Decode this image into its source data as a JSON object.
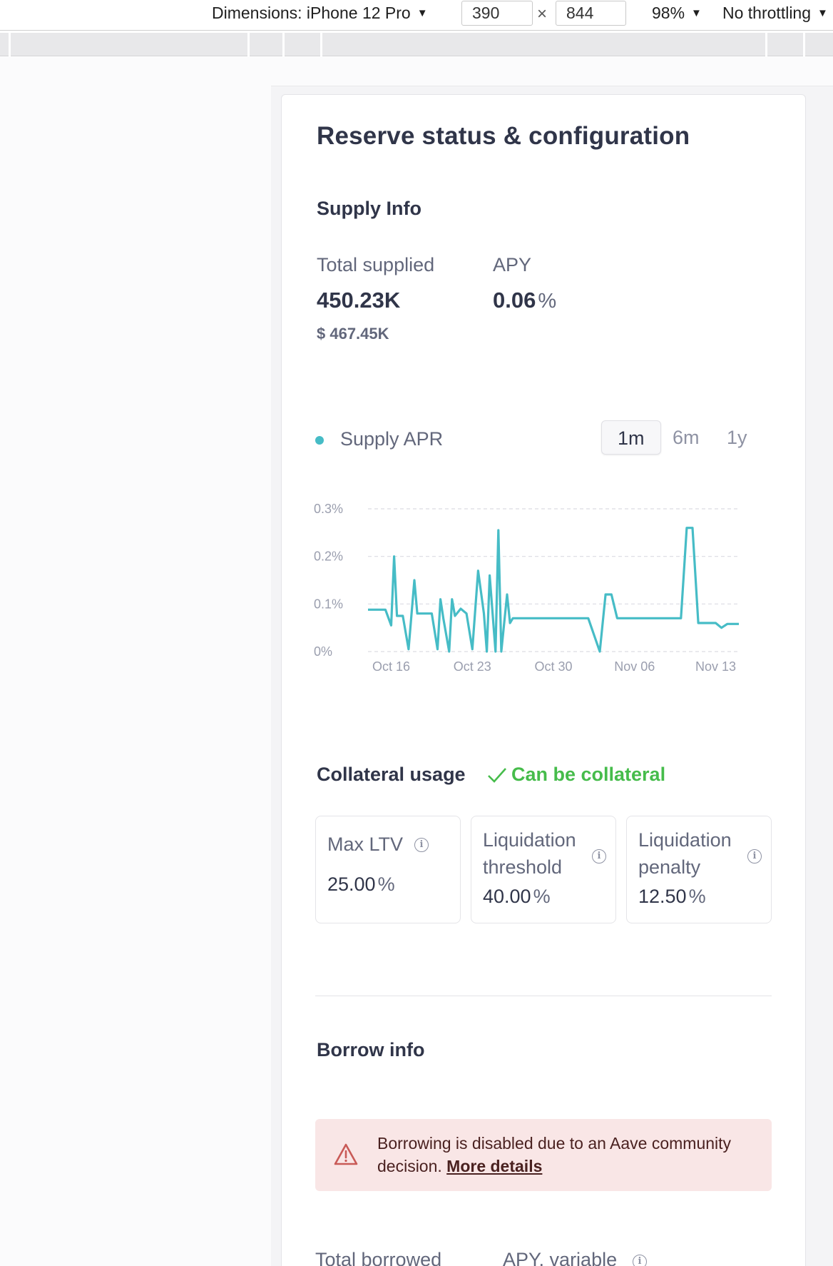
{
  "devtools": {
    "dimensions_label": "Dimensions: iPhone 12 Pro",
    "width_value": "390",
    "height_value": "844",
    "times": "×",
    "zoom": "98%",
    "throttling": "No throttling"
  },
  "card": {
    "title": "Reserve status & configuration",
    "supply": {
      "heading": "Supply Info",
      "total_supplied_label": "Total supplied",
      "total_supplied_value": "450.23K",
      "total_supplied_usd": "$ 467.45K",
      "apy_label": "APY",
      "apy_value": "0.06",
      "percent": "%"
    },
    "chart_controls": {
      "legend": "Supply APR",
      "ranges": [
        "1m",
        "6m",
        "1y"
      ],
      "selected_range": "1m"
    },
    "collateral": {
      "heading": "Collateral usage",
      "status": "Can be collateral",
      "status_color": "#46bc4b",
      "tiles": [
        {
          "label": "Max LTV",
          "value": "25.00",
          "pct": "%"
        },
        {
          "label_line1": "Liquidation",
          "label_line2": "threshold",
          "value": "40.00",
          "pct": "%"
        },
        {
          "label_line1": "Liquidation",
          "label_line2": "penalty",
          "value": "12.50",
          "pct": "%"
        }
      ]
    },
    "borrow": {
      "heading": "Borrow info",
      "alert_text": "Borrowing is disabled due to an Aave community decision.",
      "alert_link": "More details",
      "total_borrowed_label": "Total borrowed",
      "apy_variable_label": "APY, variable"
    }
  },
  "icons": {
    "info": "info-circle-icon",
    "warning": "warning-triangle-icon",
    "check": "check-icon",
    "dropdown": "caret-down-icon"
  },
  "colors": {
    "series": "#46bcc6",
    "alert_bg": "#f9e6e6",
    "alert_icon": "#c95a57"
  },
  "chart_data": {
    "type": "line",
    "series": [
      {
        "name": "Supply APR",
        "x": [
          "2023-10-14",
          "2023-10-15",
          "2023-10-15T12",
          "2023-10-16",
          "2023-10-16T06",
          "2023-10-16T12",
          "2023-10-17",
          "2023-10-17T12",
          "2023-10-18",
          "2023-10-18T06",
          "2023-10-18T12",
          "2023-10-19",
          "2023-10-19T12",
          "2023-10-20",
          "2023-10-20T06",
          "2023-10-20T12",
          "2023-10-21",
          "2023-10-21T06",
          "2023-10-21T12",
          "2023-10-22",
          "2023-10-22T12",
          "2023-10-23",
          "2023-10-23T12",
          "2023-10-24",
          "2023-10-24T06",
          "2023-10-24T12",
          "2023-10-25",
          "2023-10-25T06",
          "2023-10-25T12",
          "2023-10-26",
          "2023-10-26T06",
          "2023-10-26T12",
          "2023-10-27",
          "2023-10-27T06",
          "2023-10-27T12",
          "2023-10-28",
          "2023-10-29",
          "2023-10-30",
          "2023-10-31",
          "2023-11-01",
          "2023-11-02",
          "2023-11-03",
          "2023-11-03T12",
          "2023-11-04",
          "2023-11-04T12",
          "2023-11-05",
          "2023-11-06",
          "2023-11-07",
          "2023-11-08",
          "2023-11-09",
          "2023-11-10",
          "2023-11-10T12",
          "2023-11-11",
          "2023-11-11T12",
          "2023-11-12",
          "2023-11-13",
          "2023-11-13T12",
          "2023-11-14",
          "2023-11-15"
        ],
        "values": [
          0.088,
          0.088,
          0.088,
          0.055,
          0.2,
          0.075,
          0.075,
          0.005,
          0.15,
          0.08,
          0.08,
          0.08,
          0.08,
          0.005,
          0.11,
          0.07,
          0.0,
          0.11,
          0.075,
          0.09,
          0.08,
          0.005,
          0.17,
          0.08,
          0.0,
          0.16,
          0.0,
          0.255,
          0.0,
          0.12,
          0.06,
          0.07,
          0.07,
          0.07,
          0.07,
          0.07,
          0.07,
          0.07,
          0.07,
          0.07,
          0.07,
          0.0,
          0.12,
          0.12,
          0.07,
          0.07,
          0.07,
          0.07,
          0.07,
          0.07,
          0.07,
          0.26,
          0.26,
          0.06,
          0.06,
          0.06,
          0.05,
          0.058,
          0.058
        ]
      }
    ],
    "x_ticks": [
      "Oct 16",
      "Oct 23",
      "Oct 30",
      "Nov 06",
      "Nov 13"
    ],
    "y_ticks": [
      "0%",
      "0.1%",
      "0.2%",
      "0.3%"
    ],
    "ylim": [
      0,
      0.3
    ],
    "grid": true,
    "legend_position": "top-left"
  }
}
